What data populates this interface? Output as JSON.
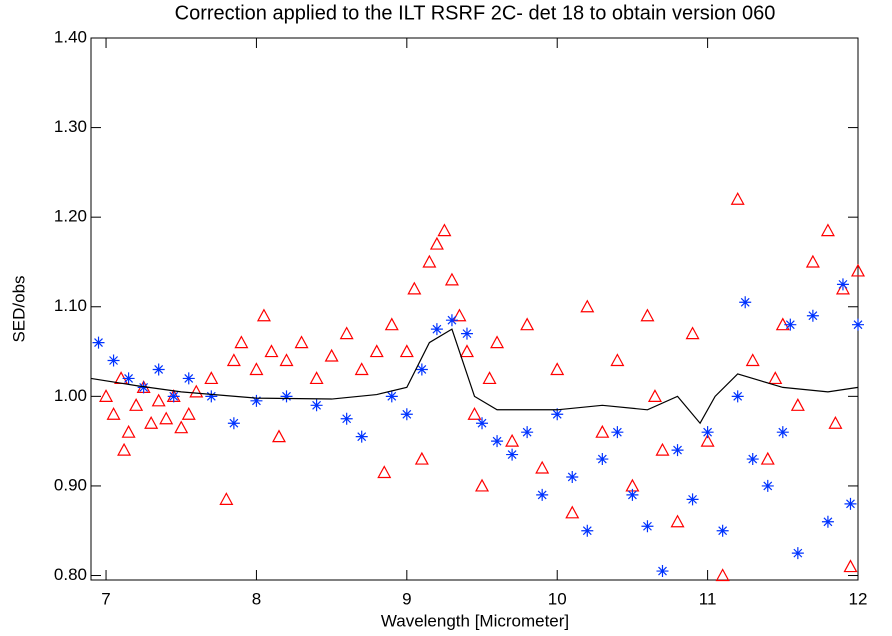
{
  "chart_data": {
    "type": "scatter",
    "title": "Correction applied to the ILT RSRF 2C- det  18 to obtain version 060",
    "x_label": "Wavelength [Micrometer]",
    "y_label": "SED/obs",
    "xlim": [
      6.9,
      12
    ],
    "ylim": [
      0.795,
      1.4
    ],
    "xticks": [
      7,
      8,
      9,
      10,
      11,
      12
    ],
    "yticks": [
      {
        "value": 0.8,
        "label": "0.80"
      },
      {
        "value": 0.9,
        "label": "0.90"
      },
      {
        "value": 1.0,
        "label": "1.00"
      },
      {
        "value": 1.1,
        "label": "1.10"
      },
      {
        "value": 1.2,
        "label": "1.20"
      },
      {
        "value": 1.3,
        "label": "1.30"
      },
      {
        "value": 1.4,
        "label": "1.40"
      }
    ],
    "series": [
      {
        "color": "#ff0000",
        "marker": "triangle",
        "x": [
          7.0,
          7.05,
          7.1,
          7.15,
          7.2,
          7.25,
          7.3,
          7.35,
          7.4,
          7.45,
          7.5,
          7.55,
          7.6,
          7.7,
          7.8,
          7.85,
          7.9,
          8.0,
          8.05,
          8.1,
          8.2,
          8.3,
          8.4,
          8.5,
          8.6,
          8.7,
          8.8,
          8.85,
          8.9,
          9.0,
          9.05,
          9.1,
          9.15,
          9.2,
          9.25,
          9.3,
          9.35,
          9.4,
          9.45,
          9.5,
          9.6,
          9.7,
          9.8,
          9.9,
          10.0,
          10.1,
          10.2,
          10.3,
          10.4,
          10.5,
          10.6,
          10.7,
          10.8,
          10.9,
          11.0,
          11.1,
          11.2,
          11.3,
          11.4,
          11.5,
          11.6,
          11.7,
          11.8,
          11.85,
          11.9,
          11.95,
          12.0,
          7.12,
          8.15,
          9.55,
          10.65,
          11.45
        ],
        "values": [
          1.0,
          0.98,
          1.02,
          0.96,
          0.99,
          1.01,
          0.97,
          0.995,
          0.975,
          1.0,
          0.965,
          0.98,
          1.005,
          1.02,
          0.885,
          1.04,
          1.06,
          1.03,
          1.09,
          1.05,
          1.04,
          1.06,
          1.02,
          1.045,
          1.07,
          1.03,
          1.05,
          0.915,
          1.08,
          1.05,
          1.12,
          0.93,
          1.15,
          1.17,
          1.185,
          1.13,
          1.09,
          1.05,
          0.98,
          0.9,
          1.06,
          0.95,
          1.08,
          0.92,
          1.03,
          0.87,
          1.1,
          0.96,
          1.04,
          0.9,
          1.09,
          0.94,
          0.86,
          1.07,
          0.95,
          0.8,
          1.22,
          1.04,
          0.93,
          1.08,
          0.99,
          1.15,
          1.185,
          0.97,
          1.12,
          0.81,
          1.14,
          0.94,
          0.955,
          1.02,
          1.0,
          1.02
        ]
      },
      {
        "color": "#0033ff",
        "marker": "asterisk",
        "x": [
          6.95,
          7.05,
          7.15,
          7.25,
          7.35,
          7.45,
          7.55,
          7.7,
          7.85,
          8.0,
          8.2,
          8.4,
          8.6,
          8.7,
          8.9,
          9.0,
          9.1,
          9.2,
          9.3,
          9.4,
          9.5,
          9.6,
          9.7,
          9.8,
          9.9,
          10.0,
          10.1,
          10.2,
          10.3,
          10.4,
          10.5,
          10.6,
          10.7,
          10.8,
          10.9,
          11.0,
          11.1,
          11.2,
          11.3,
          11.4,
          11.5,
          11.6,
          11.7,
          11.8,
          11.9,
          11.95,
          12.0,
          11.25,
          11.55
        ],
        "values": [
          1.06,
          1.04,
          1.02,
          1.01,
          1.03,
          1.0,
          1.02,
          1.0,
          0.97,
          0.995,
          1.0,
          0.99,
          0.975,
          0.955,
          1.0,
          0.98,
          1.03,
          1.075,
          1.085,
          1.07,
          0.97,
          0.95,
          0.935,
          0.96,
          0.89,
          0.98,
          0.91,
          0.85,
          0.93,
          0.96,
          0.89,
          0.855,
          0.805,
          0.94,
          0.885,
          0.96,
          0.85,
          1.0,
          0.93,
          0.9,
          0.96,
          0.825,
          1.09,
          0.86,
          1.125,
          0.88,
          1.08,
          1.105,
          1.08
        ]
      },
      {
        "color": "#000000",
        "marker": "line",
        "x": [
          6.9,
          7.2,
          7.5,
          8.0,
          8.5,
          8.8,
          9.0,
          9.15,
          9.3,
          9.45,
          9.6,
          10.0,
          10.3,
          10.6,
          10.8,
          10.95,
          11.05,
          11.2,
          11.5,
          11.8,
          12.0
        ],
        "values": [
          1.02,
          1.012,
          1.005,
          0.998,
          0.997,
          1.002,
          1.01,
          1.06,
          1.075,
          1.0,
          0.985,
          0.985,
          0.99,
          0.985,
          1.0,
          0.97,
          1.0,
          1.025,
          1.01,
          1.005,
          1.01
        ]
      }
    ]
  }
}
